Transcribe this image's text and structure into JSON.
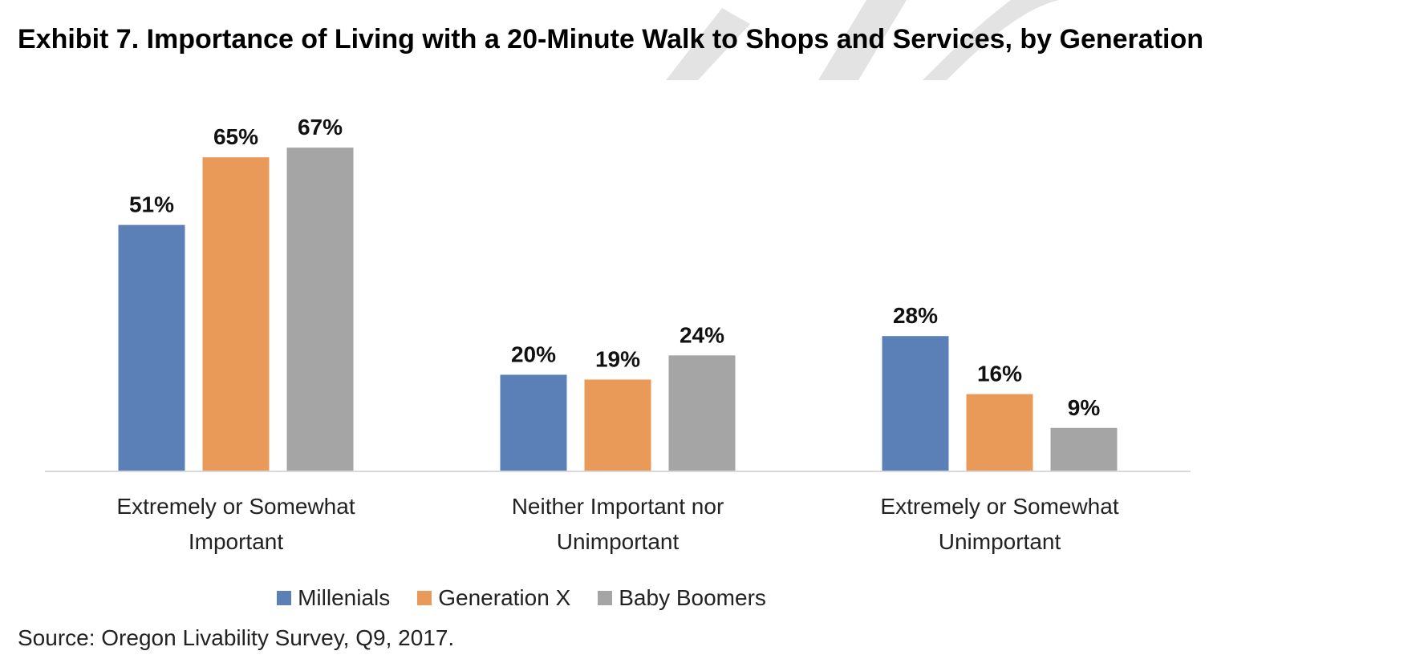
{
  "chart_data": {
    "type": "bar",
    "title": "Exhibit 7. Importance of Living with a 20-Minute Walk to Shops and Services, by Generation",
    "categories": [
      [
        "Extremely or Somewhat",
        "Important"
      ],
      [
        "Neither Important nor",
        "Unimportant"
      ],
      [
        "Extremely or Somewhat",
        "Unimportant"
      ]
    ],
    "series": [
      {
        "name": "Millenials",
        "color": "#5b80b8",
        "values": [
          51,
          20,
          28
        ]
      },
      {
        "name": "Generation X",
        "color": "#e99a58",
        "values": [
          65,
          19,
          16
        ]
      },
      {
        "name": "Baby Boomers",
        "color": "#a5a5a5",
        "values": [
          67,
          24,
          9
        ]
      }
    ],
    "value_suffix": "%",
    "ylim": [
      0,
      72
    ],
    "grid": false,
    "legend_position": "bottom"
  },
  "source": "Source: Oregon Livability Survey, Q9, 2017."
}
